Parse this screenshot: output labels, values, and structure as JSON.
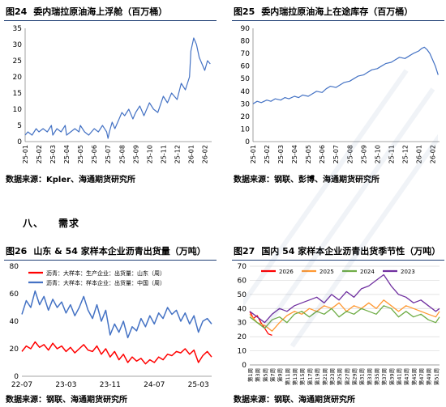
{
  "source_prefix": "数据来源：",
  "section": {
    "number": "八、",
    "title": "需求"
  },
  "panels": [
    {
      "num": "图24",
      "title": "委内瑞拉原油海上浮舱（百万桶）",
      "source": "Kpler、海通期货研究所",
      "chart_data": {
        "type": "line",
        "title": "委内瑞拉原油海上浮舱（百万桶）",
        "x_tick_labels": [
          "25-01",
          "25-02",
          "25-03",
          "25-04",
          "25-05",
          "25-06",
          "25-07",
          "25-08",
          "25-09",
          "25-10",
          "25-11",
          "25-12",
          "26-01",
          "26-02"
        ],
        "ylim": [
          0,
          35
        ],
        "y_ticks": [
          0,
          5,
          10,
          15,
          20,
          25,
          30,
          35
        ],
        "grid": false,
        "series": [
          {
            "color": "#4472c4",
            "x_index": [
              0.0,
              0.2,
              0.5,
              0.8,
              1.0,
              1.3,
              1.6,
              1.9,
              2.0,
              2.3,
              2.6,
              2.9,
              3.0,
              3.3,
              3.6,
              3.9,
              4.0,
              4.3,
              4.6,
              5.0,
              5.3,
              5.6,
              5.9,
              6.0,
              6.1,
              6.3,
              6.5,
              6.8,
              7.0,
              7.2,
              7.5,
              7.8,
              8.0,
              8.3,
              8.6,
              9.0,
              9.3,
              9.6,
              10.0,
              10.3,
              10.6,
              11.0,
              11.3,
              11.6,
              11.9,
              12.0,
              12.2,
              12.4,
              12.6,
              12.8,
              13.0,
              13.2,
              13.4
            ],
            "values": [
              2,
              3,
              2,
              4,
              3,
              4,
              3,
              5,
              2,
              4,
              3,
              5,
              2,
              3,
              4,
              3,
              5,
              3,
              2,
              4,
              3,
              5,
              3,
              1,
              3,
              6,
              4,
              7,
              9,
              8,
              10,
              7,
              9,
              11,
              8,
              12,
              10,
              9,
              14,
              12,
              15,
              13,
              18,
              16,
              20,
              28,
              32,
              30,
              26,
              24,
              22,
              25,
              24
            ]
          }
        ]
      }
    },
    {
      "num": "图25",
      "title": "委内瑞拉原油海上在途库存（百万桶）",
      "source": "钢联、彭博、海通期货研究所",
      "chart_data": {
        "type": "line",
        "title": "委内瑞拉原油海上在途库存（百万桶）",
        "x_tick_labels": [
          "25-01",
          "25-02",
          "25-03",
          "25-04",
          "25-05",
          "25-06",
          "25-07",
          "25-08",
          "25-09",
          "25-10",
          "25-11",
          "25-12",
          "26-01",
          "26-02"
        ],
        "ylim": [
          0,
          90
        ],
        "y_ticks": [
          0,
          10,
          20,
          30,
          40,
          50,
          60,
          70,
          80,
          90
        ],
        "grid": false,
        "series": [
          {
            "color": "#4472c4",
            "x_index": [
              0.0,
              0.3,
              0.6,
              1.0,
              1.3,
              1.6,
              2.0,
              2.3,
              2.6,
              3.0,
              3.3,
              3.6,
              4.0,
              4.3,
              4.6,
              5.0,
              5.3,
              5.6,
              6.0,
              6.3,
              6.6,
              7.0,
              7.3,
              7.6,
              8.0,
              8.3,
              8.6,
              9.0,
              9.3,
              9.6,
              10.0,
              10.3,
              10.6,
              11.0,
              11.3,
              11.6,
              12.0,
              12.2,
              12.4,
              12.6,
              12.8,
              13.0,
              13.2,
              13.4
            ],
            "values": [
              30,
              32,
              31,
              33,
              32,
              34,
              33,
              35,
              34,
              36,
              35,
              37,
              36,
              38,
              40,
              39,
              42,
              44,
              43,
              45,
              47,
              48,
              50,
              52,
              53,
              55,
              57,
              58,
              60,
              62,
              63,
              65,
              67,
              66,
              68,
              70,
              72,
              74,
              75,
              73,
              70,
              65,
              60,
              53
            ]
          }
        ]
      }
    },
    {
      "num": "图26",
      "title": "山东 & 54 家样本企业沥青出货量（万吨）",
      "source": "钢联、海通期货研究所",
      "chart_data": {
        "type": "line",
        "title": "山东 & 54 家样本企业沥青出货量（万吨）",
        "x_tick_labels": [
          "22-07",
          "23-03",
          "23-11",
          "24-07",
          "25-03"
        ],
        "ylim": [
          0,
          80
        ],
        "y_ticks": [
          0,
          20,
          40,
          60,
          80
        ],
        "grid": false,
        "legend": "top-left",
        "series": [
          {
            "name": "沥青：大样本：生产企业：出货量：山东（周）",
            "color": "#ff0000",
            "x_index": [
              0.0,
              0.1,
              0.2,
              0.3,
              0.4,
              0.5,
              0.6,
              0.7,
              0.8,
              0.9,
              1.0,
              1.1,
              1.2,
              1.3,
              1.4,
              1.5,
              1.6,
              1.7,
              1.8,
              1.9,
              2.0,
              2.1,
              2.2,
              2.3,
              2.4,
              2.5,
              2.6,
              2.7,
              2.8,
              2.9,
              3.0,
              3.1,
              3.2,
              3.3,
              3.4,
              3.5,
              3.6,
              3.7,
              3.8,
              3.9,
              4.0,
              4.1,
              4.2,
              4.3
            ],
            "values": [
              18,
              22,
              20,
              25,
              21,
              23,
              19,
              24,
              20,
              22,
              18,
              21,
              17,
              20,
              23,
              19,
              18,
              22,
              16,
              20,
              14,
              18,
              12,
              16,
              10,
              14,
              11,
              13,
              9,
              12,
              10,
              14,
              12,
              16,
              15,
              18,
              17,
              20,
              16,
              19,
              10,
              15,
              18,
              14
            ]
          },
          {
            "name": "沥青：大样本：样本企业：出货量：中国（周）",
            "color": "#4472c4",
            "x_index": [
              0.0,
              0.1,
              0.2,
              0.3,
              0.4,
              0.5,
              0.6,
              0.7,
              0.8,
              0.9,
              1.0,
              1.1,
              1.2,
              1.3,
              1.4,
              1.5,
              1.6,
              1.7,
              1.8,
              1.9,
              2.0,
              2.1,
              2.2,
              2.3,
              2.4,
              2.5,
              2.6,
              2.7,
              2.8,
              2.9,
              3.0,
              3.1,
              3.2,
              3.3,
              3.4,
              3.5,
              3.6,
              3.7,
              3.8,
              3.9,
              4.0,
              4.1,
              4.2,
              4.3
            ],
            "values": [
              45,
              55,
              50,
              62,
              52,
              58,
              48,
              56,
              50,
              54,
              46,
              52,
              44,
              50,
              58,
              48,
              42,
              52,
              40,
              48,
              30,
              38,
              32,
              40,
              28,
              36,
              33,
              42,
              36,
              44,
              38,
              46,
              42,
              50,
              45,
              48,
              40,
              46,
              38,
              44,
              32,
              40,
              42,
              38
            ]
          }
        ]
      }
    },
    {
      "num": "图27",
      "title": "国内 54 家样本企业沥青出货季节性（万吨）",
      "source": "钢联、海通期货研究所",
      "chart_data": {
        "type": "line",
        "title": "国内 54 家样本企业沥青出货季节性（万吨）",
        "x_tick_labels": [
          "第1周",
          "第3周",
          "第5周",
          "第7周",
          "第9周",
          "第11周",
          "第13周",
          "第15周",
          "第17周",
          "第19周",
          "第21周",
          "第23周",
          "第25周",
          "第27周",
          "第29周",
          "第31周",
          "第33周",
          "第35周",
          "第37周",
          "第39周",
          "第41周",
          "第43周",
          "第45周",
          "第47周",
          "第49周",
          "第51周"
        ],
        "ylim": [
          0,
          70
        ],
        "y_ticks": [
          0,
          10,
          20,
          30,
          40,
          50,
          60,
          70
        ],
        "grid": true,
        "legend": "top-left",
        "series": [
          {
            "name": "2026",
            "color": "#ff0000",
            "x_week": [
              1,
              2,
              3,
              4,
              5,
              6,
              7
            ],
            "values": [
              38,
              33,
              35,
              30,
              26,
              22,
              21
            ]
          },
          {
            "name": "2025",
            "color": "#ff9933",
            "x_week": [
              1,
              3,
              5,
              7,
              9,
              11,
              13,
              15,
              17,
              19,
              21,
              23,
              25,
              27,
              29,
              31,
              33,
              35,
              37,
              39,
              41,
              43,
              45,
              47,
              49,
              51,
              52
            ],
            "values": [
              36,
              30,
              28,
              24,
              30,
              35,
              38,
              36,
              40,
              38,
              42,
              40,
              44,
              38,
              42,
              40,
              44,
              40,
              46,
              42,
              38,
              42,
              40,
              38,
              36,
              34,
              38
            ]
          },
          {
            "name": "2024",
            "color": "#70ad47",
            "x_week": [
              1,
              3,
              5,
              7,
              9,
              11,
              13,
              15,
              17,
              19,
              21,
              23,
              25,
              27,
              29,
              31,
              33,
              35,
              37,
              39,
              41,
              43,
              45,
              47,
              49,
              51,
              52
            ],
            "values": [
              34,
              30,
              26,
              32,
              34,
              30,
              36,
              38,
              34,
              38,
              36,
              40,
              34,
              38,
              36,
              40,
              38,
              36,
              42,
              40,
              34,
              38,
              34,
              36,
              32,
              30,
              34
            ]
          },
          {
            "name": "2023",
            "color": "#7030a0",
            "x_week": [
              1,
              3,
              5,
              7,
              9,
              11,
              13,
              15,
              17,
              19,
              21,
              23,
              25,
              27,
              29,
              31,
              33,
              35,
              37,
              39,
              41,
              43,
              45,
              47,
              49,
              51,
              52
            ],
            "values": [
              38,
              34,
              30,
              36,
              40,
              38,
              42,
              44,
              46,
              48,
              44,
              50,
              46,
              52,
              48,
              54,
              56,
              60,
              64,
              56,
              50,
              48,
              44,
              46,
              42,
              38,
              40
            ]
          }
        ]
      }
    }
  ]
}
